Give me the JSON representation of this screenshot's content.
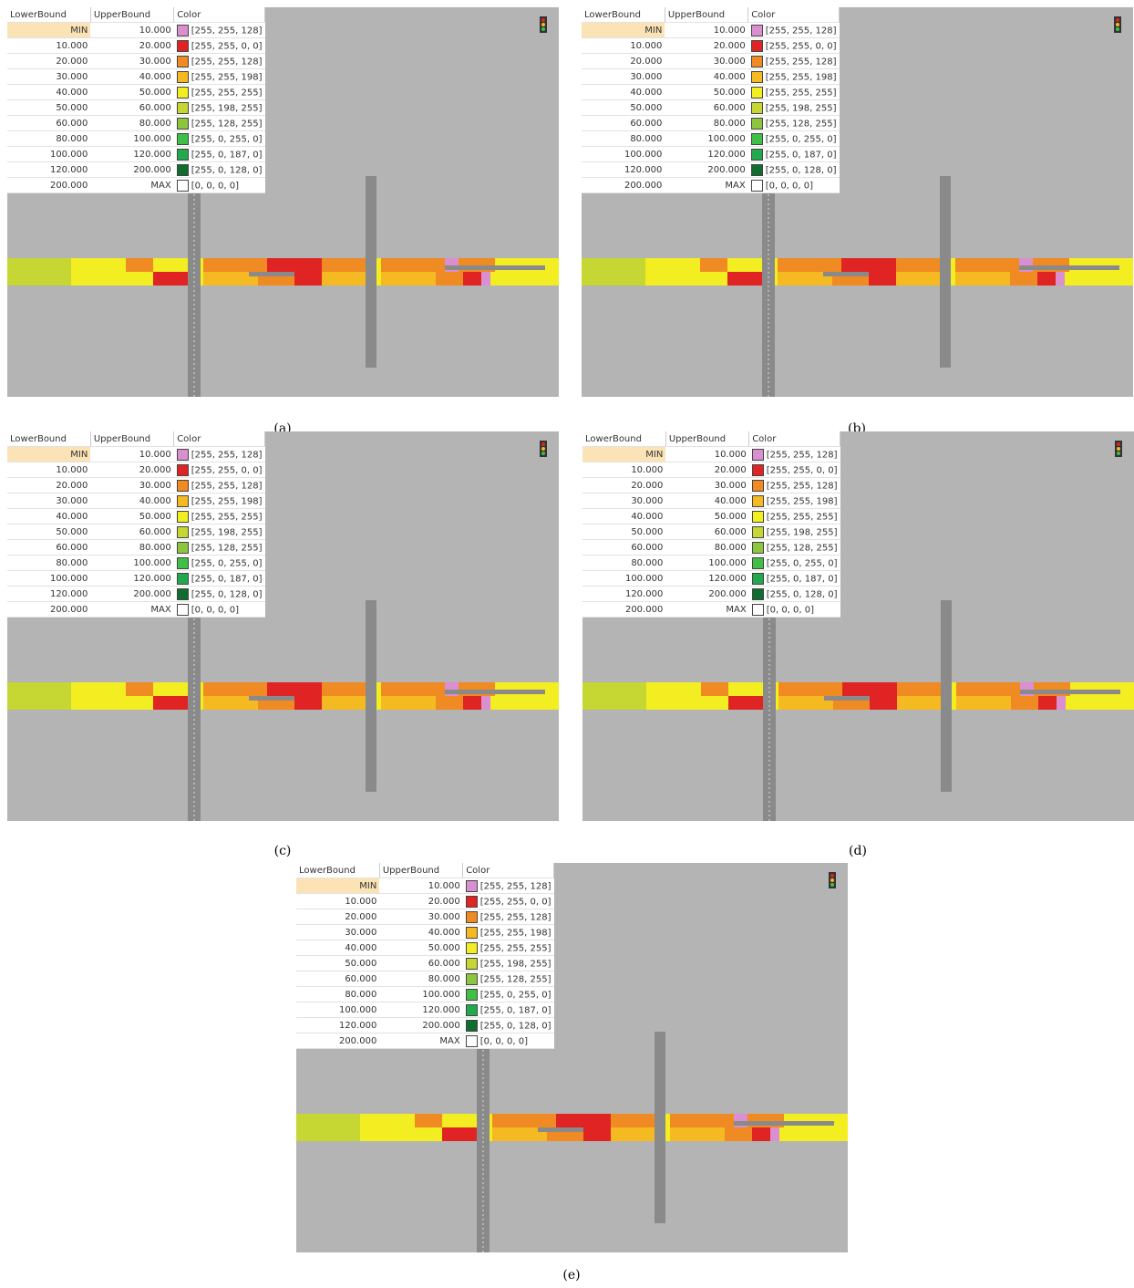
{
  "legend": {
    "header": [
      "LowerBound",
      "UpperBound",
      "Color"
    ],
    "rows": [
      {
        "lower": "MIN",
        "upper": "10.000",
        "color_text": "[255, 255, 128]",
        "swatch": "#d98fd0"
      },
      {
        "lower": "10.000",
        "upper": "20.000",
        "color_text": "[255, 255, 0, 0]",
        "swatch": "#e02424"
      },
      {
        "lower": "20.000",
        "upper": "30.000",
        "color_text": "[255, 255, 128]",
        "swatch": "#f08a22"
      },
      {
        "lower": "30.000",
        "upper": "40.000",
        "color_text": "[255, 255, 198]",
        "swatch": "#f5b922"
      },
      {
        "lower": "40.000",
        "upper": "50.000",
        "color_text": "[255, 255, 255]",
        "swatch": "#f2ee22"
      },
      {
        "lower": "50.000",
        "upper": "60.000",
        "color_text": "[255, 198, 255]",
        "swatch": "#c6d632"
      },
      {
        "lower": "60.000",
        "upper": "80.000",
        "color_text": "[255, 128, 255]",
        "swatch": "#8cc63e"
      },
      {
        "lower": "80.000",
        "upper": "100.000",
        "color_text": "[255, 0, 255, 0]",
        "swatch": "#3fbf46"
      },
      {
        "lower": "100.000",
        "upper": "120.000",
        "color_text": "[255, 0, 187, 0]",
        "swatch": "#22a94e"
      },
      {
        "lower": "120.000",
        "upper": "200.000",
        "color_text": "[255, 0, 128, 0]",
        "swatch": "#0f6e2e"
      },
      {
        "lower": "200.000",
        "upper": "MAX",
        "color_text": "[0, 0, 0, 0]",
        "swatch": "#ffffff"
      }
    ]
  },
  "panels": [
    {
      "label": "(a)"
    },
    {
      "label": "(b)"
    },
    {
      "label": "(c)"
    },
    {
      "label": "(d)"
    },
    {
      "label": "(e)"
    }
  ]
}
